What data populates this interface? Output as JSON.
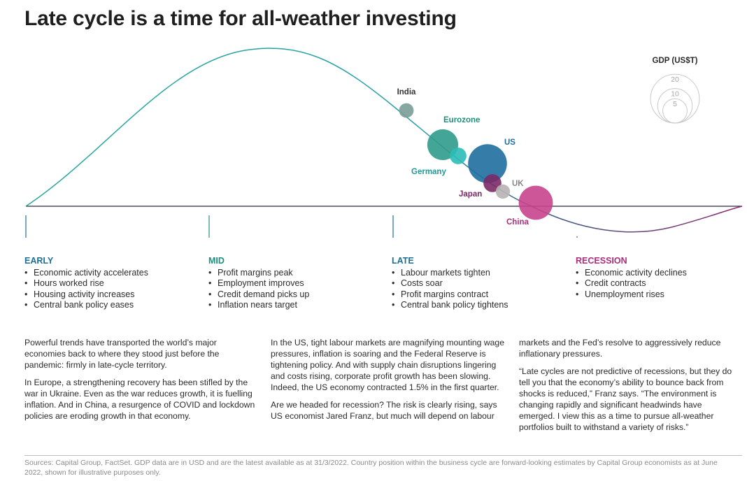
{
  "title": "Late cycle is a time for all-weather investing",
  "colors": {
    "early": "#1c6f95",
    "mid": "#1f8f7f",
    "late": "#1c6f95",
    "recession": "#b12d7c",
    "curve_up": "#25a89d",
    "curve_down": "#8b2a6e",
    "baseline": "#2a2a3a"
  },
  "chart_data": {
    "type": "scatter",
    "description_ref": "business cycle bubble chart",
    "bubbles": [
      {
        "name": "India",
        "gdp": 3.2,
        "color": "#7a9e98",
        "label_color": "#333333"
      },
      {
        "name": "Eurozone",
        "gdp": 14.5,
        "color": "#2f9b8b",
        "label_color": "#1f8f7f"
      },
      {
        "name": "Germany",
        "gdp": 4.2,
        "color": "#2bbdb8",
        "label_color": "#1f9a98"
      },
      {
        "name": "US",
        "gdp": 23.0,
        "color": "#1f6f9f",
        "label_color": "#1f6f9f"
      },
      {
        "name": "Japan",
        "gdp": 4.9,
        "color": "#7a2a66",
        "label_color": "#7a2a66"
      },
      {
        "name": "UK",
        "gdp": 3.1,
        "color": "#b8b3b3",
        "label_color": "#888888"
      },
      {
        "name": "China",
        "gdp": 17.7,
        "color": "#c8448e",
        "label_color": "#b12d7c"
      }
    ],
    "legend": {
      "title": "GDP (US$T)",
      "values": [
        20,
        10,
        5
      ],
      "placement": "top-right"
    }
  },
  "phases": [
    {
      "key": "early",
      "label": "EARLY",
      "items": [
        "Economic activity accelerates",
        "Hours worked rise",
        "Housing activity increases",
        "Central bank policy eases"
      ]
    },
    {
      "key": "mid",
      "label": "MID",
      "items": [
        "Profit margins peak",
        "Employment improves",
        "Credit demand picks up",
        "Inflation nears target"
      ]
    },
    {
      "key": "late",
      "label": "LATE",
      "items": [
        "Labour markets tighten",
        "Costs soar",
        "Profit margins contract",
        "Central bank policy tightens"
      ]
    },
    {
      "key": "recession",
      "label": "RECESSION",
      "items": [
        "Economic activity declines",
        "Credit contracts",
        "Unemployment rises"
      ]
    }
  ],
  "body": {
    "col1": [
      "Powerful trends have transported the world’s major economies back to where they stood just before the pandemic: firmly in late-cycle territory.",
      "In Europe, a strengthening recovery has been stifled by the war in Ukraine. Even as the war reduces growth, it is fuelling inflation. And in China, a resurgence of COVID and lockdown policies are eroding growth in that economy."
    ],
    "col2": [
      "In the US, tight labour markets are magnifying mounting wage pressures, inflation is soaring and the Federal Reserve is tightening policy. And with supply chain disruptions lingering and costs rising, corporate profit growth has been slowing. Indeed, the US economy contracted 1.5% in the first quarter.",
      "Are we headed for recession? The risk is clearly rising, says US economist Jared Franz, but much will depend on labour"
    ],
    "col3": [
      "markets and the Fed’s resolve to aggressively reduce inflationary pressures.",
      "“Late cycles are not predictive of recessions, but they do tell you that the economy’s ability to bounce back from shocks is reduced,” Franz says. “The environment is changing rapidly and significant headwinds have emerged. I view this as a time to pursue all-weather portfolios built to withstand a variety of risks.”"
    ]
  },
  "sources": "Sources: Capital Group, FactSet. GDP data are in USD and are the latest available as at 31/3/2022. Country position within the business cycle are forward-looking estimates by Capital Group economists as at June 2022, shown for illustrative purposes only."
}
